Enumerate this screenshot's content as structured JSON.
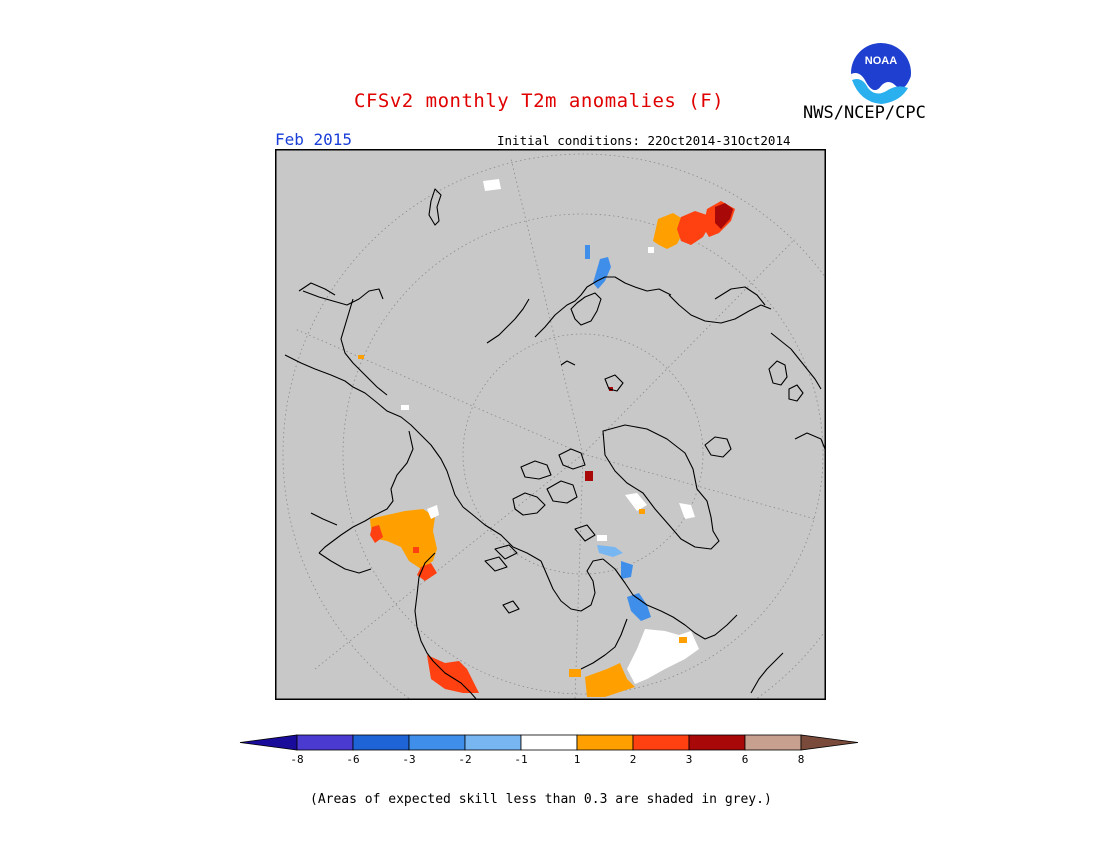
{
  "header": {
    "title": "CFSv2 monthly T2m anomalies (F)",
    "valid_month": "Feb 2015",
    "initial_conditions": "Initial conditions: 22Oct2014-31Oct2014",
    "agency": "NWS/NCEP/CPC",
    "logo_text": "NOAA"
  },
  "map": {
    "projection": "north-polar-stereographic",
    "background_color": "#c8c8c8",
    "coastline_color": "#000000"
  },
  "colorbar": {
    "labels": [
      "-8",
      "-6",
      "-3",
      "-2",
      "-1",
      "1",
      "2",
      "3",
      "6",
      "8"
    ],
    "colors": [
      "#1a0c9a",
      "#4a3ad0",
      "#1f64d6",
      "#3f8eea",
      "#78b6f2",
      "#ffffff",
      "#ffa000",
      "#ff4010",
      "#a80808",
      "#c8a090",
      "#7a4a3a"
    ]
  },
  "footer": {
    "note": "(Areas of expected skill less than 0.3 are shaded in grey.)"
  }
}
